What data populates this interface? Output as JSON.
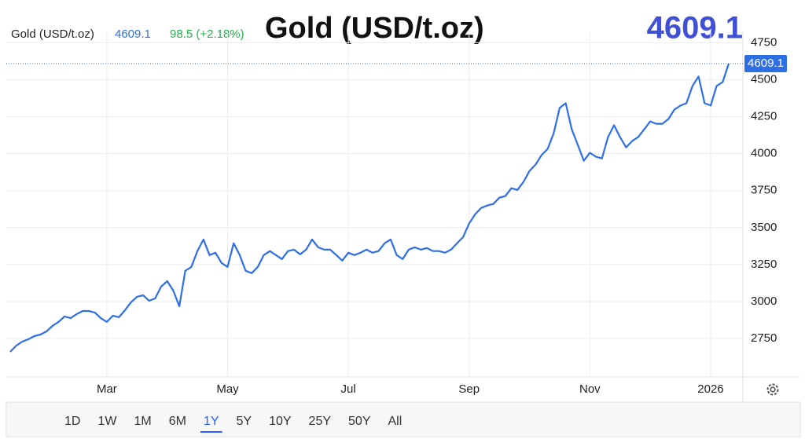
{
  "chart_data": {
    "type": "line",
    "title": "Gold (USD/t.oz)",
    "change": {
      "value": 98.5,
      "label": "98.5 (+2.18%)"
    },
    "color": "#2e6fe6",
    "categories": [
      null,
      null,
      null,
      null,
      null,
      null,
      null,
      null,
      null,
      null,
      null,
      null,
      null,
      null,
      null,
      null,
      "Mar",
      null,
      null,
      null,
      null,
      null,
      null,
      null,
      null,
      null,
      null,
      null,
      null,
      null,
      null,
      null,
      null,
      null,
      null,
      null,
      "May",
      null,
      null,
      null,
      null,
      null,
      null,
      null,
      null,
      null,
      null,
      null,
      null,
      null,
      null,
      null,
      null,
      null,
      null,
      null,
      "Jul",
      null,
      null,
      null,
      null,
      null,
      null,
      null,
      null,
      null,
      null,
      null,
      null,
      null,
      null,
      null,
      null,
      null,
      null,
      null,
      "Sep",
      null,
      null,
      null,
      null,
      null,
      null,
      null,
      null,
      null,
      null,
      null,
      null,
      null,
      null,
      null,
      null,
      null,
      null,
      null,
      "Nov",
      null,
      null,
      null,
      null,
      null,
      null,
      null,
      null,
      null,
      null,
      null,
      null,
      null,
      null,
      null,
      null,
      null,
      null,
      null,
      "2026",
      null,
      null,
      null
    ],
    "values": [
      2660,
      2702,
      2729,
      2745,
      2766,
      2777,
      2798,
      2835,
      2862,
      2899,
      2888,
      2915,
      2936,
      2936,
      2926,
      2888,
      2862,
      2904,
      2894,
      2941,
      2995,
      3032,
      3043,
      3005,
      3021,
      3101,
      3138,
      3074,
      2968,
      3208,
      3234,
      3341,
      3420,
      3314,
      3330,
      3261,
      3234,
      3394,
      3314,
      3208,
      3192,
      3234,
      3314,
      3341,
      3314,
      3287,
      3341,
      3351,
      3319,
      3351,
      3420,
      3367,
      3351,
      3351,
      3314,
      3277,
      3330,
      3314,
      3330,
      3351,
      3330,
      3341,
      3394,
      3420,
      3314,
      3287,
      3351,
      3367,
      3351,
      3362,
      3341,
      3341,
      3330,
      3351,
      3394,
      3436,
      3527,
      3590,
      3633,
      3649,
      3660,
      3702,
      3713,
      3766,
      3755,
      3809,
      3883,
      3926,
      3990,
      4032,
      4138,
      4309,
      4341,
      4165,
      4059,
      3952,
      4006,
      3979,
      3968,
      4112,
      4192,
      4112,
      4043,
      4085,
      4112,
      4165,
      4218,
      4202,
      4202,
      4234,
      4298,
      4325,
      4341,
      4458,
      4522,
      4341,
      4325,
      4458,
      4484,
      4609.1
    ],
    "ylim": [
      2490,
      4800
    ],
    "yticks": [
      2750,
      3000,
      3250,
      3500,
      3750,
      4000,
      4250,
      4500,
      4750
    ],
    "grid": true,
    "range_buttons": [
      "1D",
      "1W",
      "1M",
      "6M",
      "1Y",
      "5Y",
      "10Y",
      "25Y",
      "50Y",
      "All"
    ],
    "selected_range": "1Y"
  }
}
